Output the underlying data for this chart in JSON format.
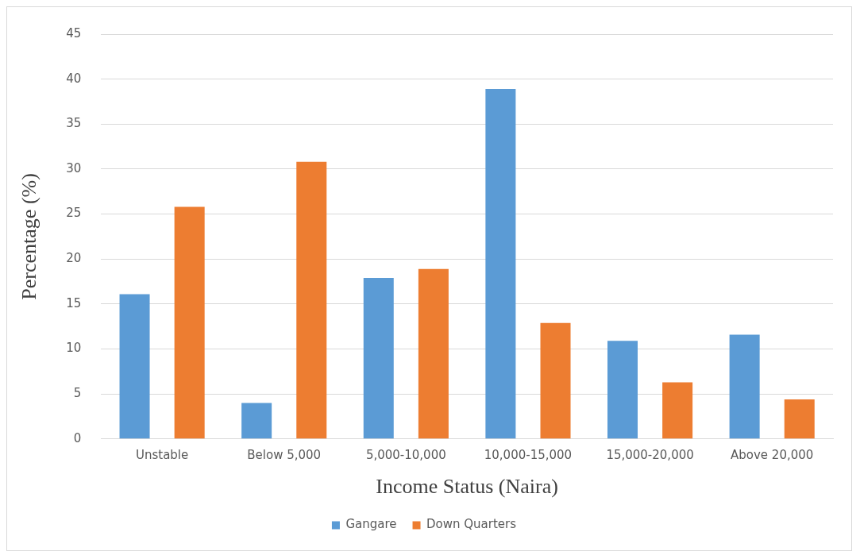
{
  "chart_data": {
    "type": "bar",
    "xlabel": "Income Status (Naira)",
    "ylabel": "Percentage (%)",
    "categories": [
      "Unstable",
      "Below 5,000",
      "5,000-10,000",
      "10,000-15,000",
      "15,000-20,000",
      "Above 20,000"
    ],
    "series": [
      {
        "name": "Gangare",
        "color": "#5b9bd5",
        "values": [
          16.1,
          4,
          17.9,
          38.9,
          10.9,
          11.6
        ]
      },
      {
        "name": "Down Quarters",
        "color": "#ed7d31",
        "values": [
          25.8,
          30.8,
          18.9,
          12.9,
          6.3,
          4.4
        ]
      }
    ],
    "ylim": [
      0,
      45
    ],
    "yticks": [
      0,
      5,
      10,
      15,
      20,
      25,
      30,
      35,
      40,
      45
    ],
    "grid": "y",
    "legend": "bottom"
  }
}
